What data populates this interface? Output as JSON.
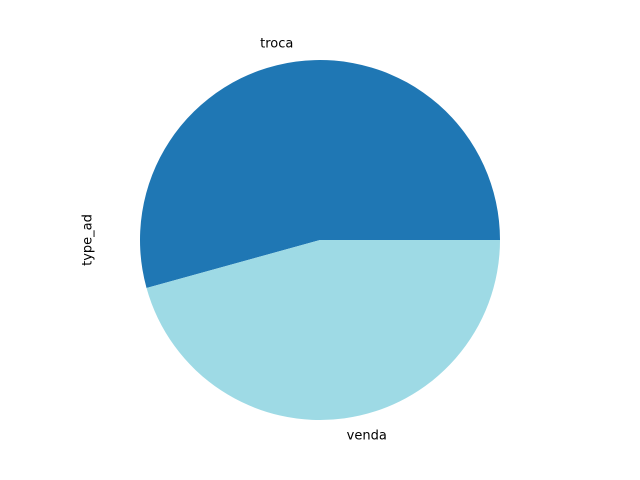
{
  "chart_data": {
    "type": "pie",
    "title": "",
    "ylabel": "type_ad",
    "categories": [
      "troca",
      "venda"
    ],
    "values": [
      54.3,
      45.7
    ],
    "colors": [
      "#1f77b4",
      "#9edae5"
    ],
    "start_angle_deg": 0,
    "direction": "counterclockwise",
    "legend": "none"
  }
}
